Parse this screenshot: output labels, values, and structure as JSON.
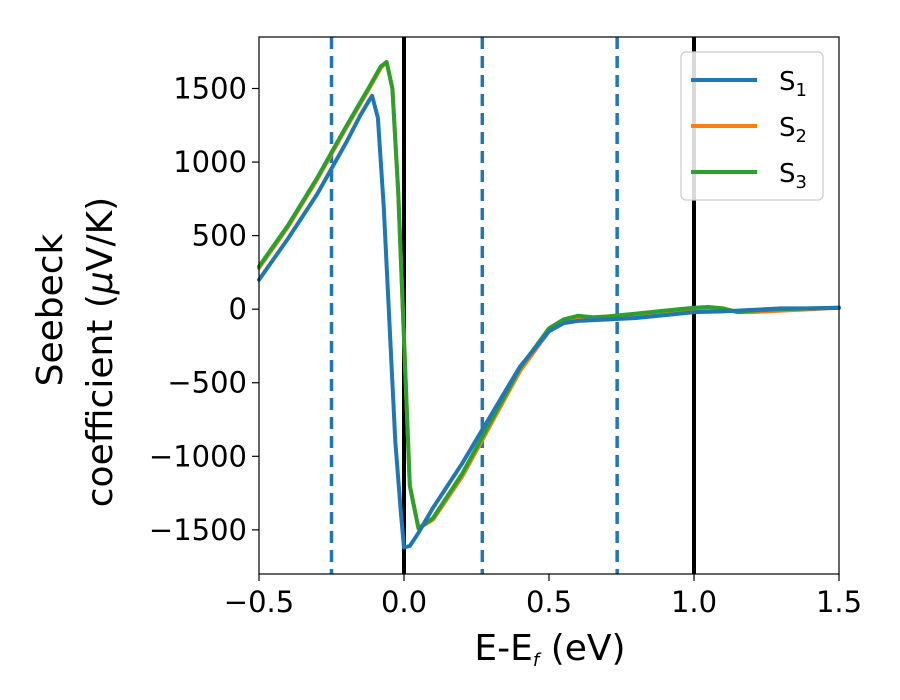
{
  "chart_data": {
    "type": "line",
    "xlabel": "E-E",
    "xlabel_sub": "f",
    "xlabel_unit": " (eV)",
    "ylabel_line1": "Seebeck",
    "ylabel_line2_prefix": "coefficient  (",
    "ylabel_mu": "μ",
    "ylabel_line2_suffix": "V/K)",
    "xlim": [
      -0.5,
      1.5
    ],
    "ylim": [
      -1800,
      1850
    ],
    "x_ticks": [
      -0.5,
      0.0,
      0.5,
      1.0,
      1.5
    ],
    "x_tick_labels": [
      "−0.5",
      "0.0",
      "0.5",
      "1.0",
      "1.5"
    ],
    "y_ticks": [
      -1500,
      -1000,
      -500,
      0,
      500,
      1000,
      1500
    ],
    "y_tick_labels": [
      "−1500",
      "−1000",
      "−500",
      "0",
      "500",
      "1000",
      "1500"
    ],
    "grid": false,
    "legend_position": "top-right",
    "vertical_lines": [
      {
        "x": -0.25,
        "style": "dashed",
        "color": "#1f77b4"
      },
      {
        "x": 0.0,
        "style": "solid",
        "color": "#000000"
      },
      {
        "x": 0.27,
        "style": "dashed",
        "color": "#1f77b4"
      },
      {
        "x": 0.735,
        "style": "dashed",
        "color": "#1f77b4"
      },
      {
        "x": 1.0,
        "style": "solid",
        "color": "#000000"
      }
    ],
    "series": [
      {
        "name": "S",
        "sub": "1",
        "color": "#1f77b4",
        "x": [
          -0.5,
          -0.4,
          -0.3,
          -0.2,
          -0.15,
          -0.12,
          -0.11,
          -0.09,
          -0.07,
          -0.05,
          -0.03,
          -0.01,
          0.0,
          0.02,
          0.05,
          0.1,
          0.2,
          0.3,
          0.4,
          0.5,
          0.55,
          0.6,
          0.7,
          0.8,
          0.9,
          1.0,
          1.1,
          1.2,
          1.3,
          1.4,
          1.5
        ],
        "y": [
          200,
          480,
          780,
          1130,
          1320,
          1420,
          1450,
          1300,
          700,
          -100,
          -900,
          -1400,
          -1620,
          -1610,
          -1520,
          -1350,
          -1050,
          -720,
          -390,
          -150,
          -95,
          -80,
          -70,
          -60,
          -40,
          -20,
          -15,
          -5,
          5,
          5,
          10
        ]
      },
      {
        "name": "S",
        "sub": "2",
        "color": "#ff7f0e",
        "x": [
          -0.5,
          -0.4,
          -0.3,
          -0.2,
          -0.12,
          -0.08,
          -0.06,
          -0.04,
          -0.02,
          0.0,
          0.02,
          0.05,
          0.1,
          0.2,
          0.3,
          0.4,
          0.5,
          0.55,
          0.6,
          0.65,
          0.7,
          0.8,
          0.9,
          1.0,
          1.05,
          1.1,
          1.15,
          1.2,
          1.3,
          1.4,
          1.5
        ],
        "y": [
          280,
          560,
          880,
          1230,
          1500,
          1640,
          1680,
          1500,
          800,
          -200,
          -1200,
          -1490,
          -1430,
          -1140,
          -780,
          -420,
          -150,
          -85,
          -70,
          -60,
          -50,
          -40,
          -20,
          0,
          10,
          5,
          -20,
          -20,
          -10,
          0,
          10
        ]
      },
      {
        "name": "S",
        "sub": "3",
        "color": "#2ca02c",
        "x": [
          -0.5,
          -0.4,
          -0.3,
          -0.2,
          -0.12,
          -0.08,
          -0.06,
          -0.04,
          -0.02,
          0.0,
          0.02,
          0.05,
          0.1,
          0.2,
          0.3,
          0.4,
          0.5,
          0.55,
          0.6,
          0.65,
          0.7,
          0.8,
          0.9,
          1.0,
          1.05,
          1.1,
          1.15,
          1.2,
          1.3,
          1.4,
          1.5
        ],
        "y": [
          290,
          570,
          890,
          1240,
          1510,
          1650,
          1680,
          1500,
          800,
          -200,
          -1200,
          -1490,
          -1420,
          -1120,
          -760,
          -400,
          -130,
          -70,
          -45,
          -55,
          -50,
          -30,
          -10,
          10,
          15,
          5,
          -20,
          -10,
          0,
          5,
          10
        ]
      }
    ]
  }
}
